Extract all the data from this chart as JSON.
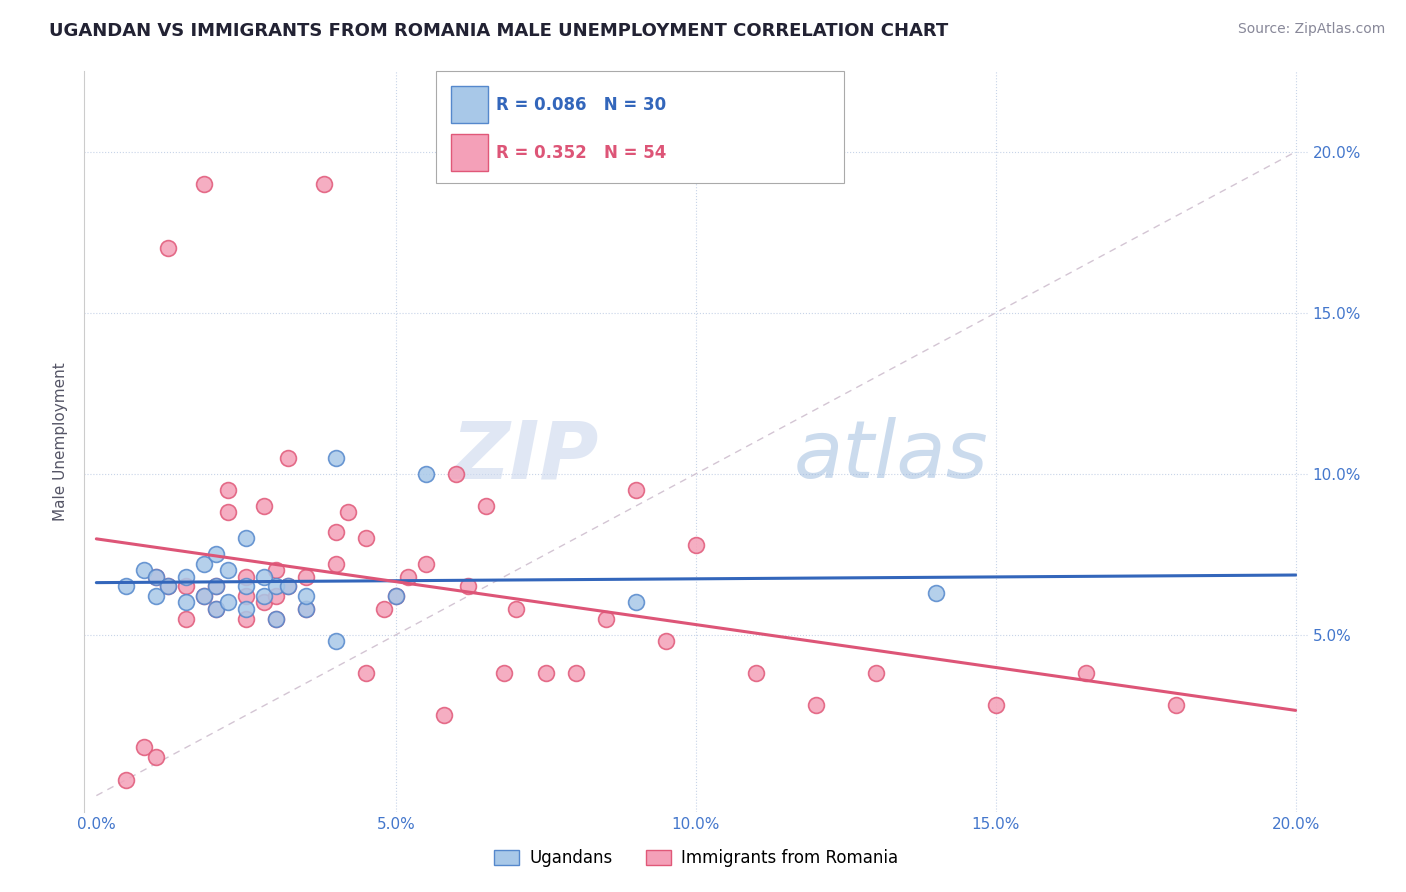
{
  "title": "UGANDAN VS IMMIGRANTS FROM ROMANIA MALE UNEMPLOYMENT CORRELATION CHART",
  "source": "Source: ZipAtlas.com",
  "ylabel": "Male Unemployment",
  "y_tick_labels": [
    "",
    "5.0%",
    "10.0%",
    "15.0%",
    "20.0%"
  ],
  "y_ticks": [
    0.0,
    0.05,
    0.1,
    0.15,
    0.2
  ],
  "x_ticks": [
    0.0,
    0.05,
    0.1,
    0.15,
    0.2
  ],
  "x_tick_labels": [
    "0.0%",
    "5.0%",
    "10.0%",
    "15.0%",
    "20.0%"
  ],
  "xlim": [
    -0.002,
    0.202
  ],
  "ylim": [
    -0.005,
    0.225
  ],
  "ugandan_R": 0.086,
  "ugandan_N": 30,
  "romania_R": 0.352,
  "romania_N": 54,
  "ugandan_color": "#a8c8e8",
  "romania_color": "#f4a0b8",
  "ugandan_edge_color": "#5588cc",
  "romania_edge_color": "#e05878",
  "ugandan_line_color": "#3366bb",
  "romania_line_color": "#dd5577",
  "diag_line_color": "#ccbbcc",
  "watermark_color": "#dde8f5",
  "ugandan_x": [
    0.005,
    0.008,
    0.01,
    0.01,
    0.012,
    0.015,
    0.015,
    0.018,
    0.018,
    0.02,
    0.02,
    0.02,
    0.022,
    0.022,
    0.025,
    0.025,
    0.025,
    0.028,
    0.028,
    0.03,
    0.03,
    0.032,
    0.035,
    0.035,
    0.04,
    0.04,
    0.05,
    0.055,
    0.09,
    0.14
  ],
  "ugandan_y": [
    0.065,
    0.07,
    0.062,
    0.068,
    0.065,
    0.06,
    0.068,
    0.062,
    0.072,
    0.058,
    0.065,
    0.075,
    0.06,
    0.07,
    0.058,
    0.065,
    0.08,
    0.062,
    0.068,
    0.055,
    0.065,
    0.065,
    0.058,
    0.062,
    0.048,
    0.105,
    0.062,
    0.1,
    0.06,
    0.063
  ],
  "romania_x": [
    0.005,
    0.008,
    0.01,
    0.01,
    0.012,
    0.012,
    0.015,
    0.015,
    0.018,
    0.018,
    0.02,
    0.02,
    0.022,
    0.022,
    0.025,
    0.025,
    0.025,
    0.028,
    0.028,
    0.03,
    0.03,
    0.03,
    0.032,
    0.032,
    0.035,
    0.035,
    0.038,
    0.04,
    0.04,
    0.042,
    0.045,
    0.045,
    0.048,
    0.05,
    0.052,
    0.055,
    0.058,
    0.06,
    0.062,
    0.065,
    0.068,
    0.07,
    0.075,
    0.08,
    0.085,
    0.09,
    0.095,
    0.1,
    0.11,
    0.12,
    0.13,
    0.15,
    0.165,
    0.18
  ],
  "romania_y": [
    0.005,
    0.015,
    0.012,
    0.068,
    0.065,
    0.17,
    0.055,
    0.065,
    0.062,
    0.19,
    0.058,
    0.065,
    0.088,
    0.095,
    0.055,
    0.062,
    0.068,
    0.06,
    0.09,
    0.055,
    0.062,
    0.07,
    0.065,
    0.105,
    0.058,
    0.068,
    0.19,
    0.072,
    0.082,
    0.088,
    0.038,
    0.08,
    0.058,
    0.062,
    0.068,
    0.072,
    0.025,
    0.1,
    0.065,
    0.09,
    0.038,
    0.058,
    0.038,
    0.038,
    0.055,
    0.095,
    0.048,
    0.078,
    0.038,
    0.028,
    0.038,
    0.028,
    0.038,
    0.028
  ]
}
